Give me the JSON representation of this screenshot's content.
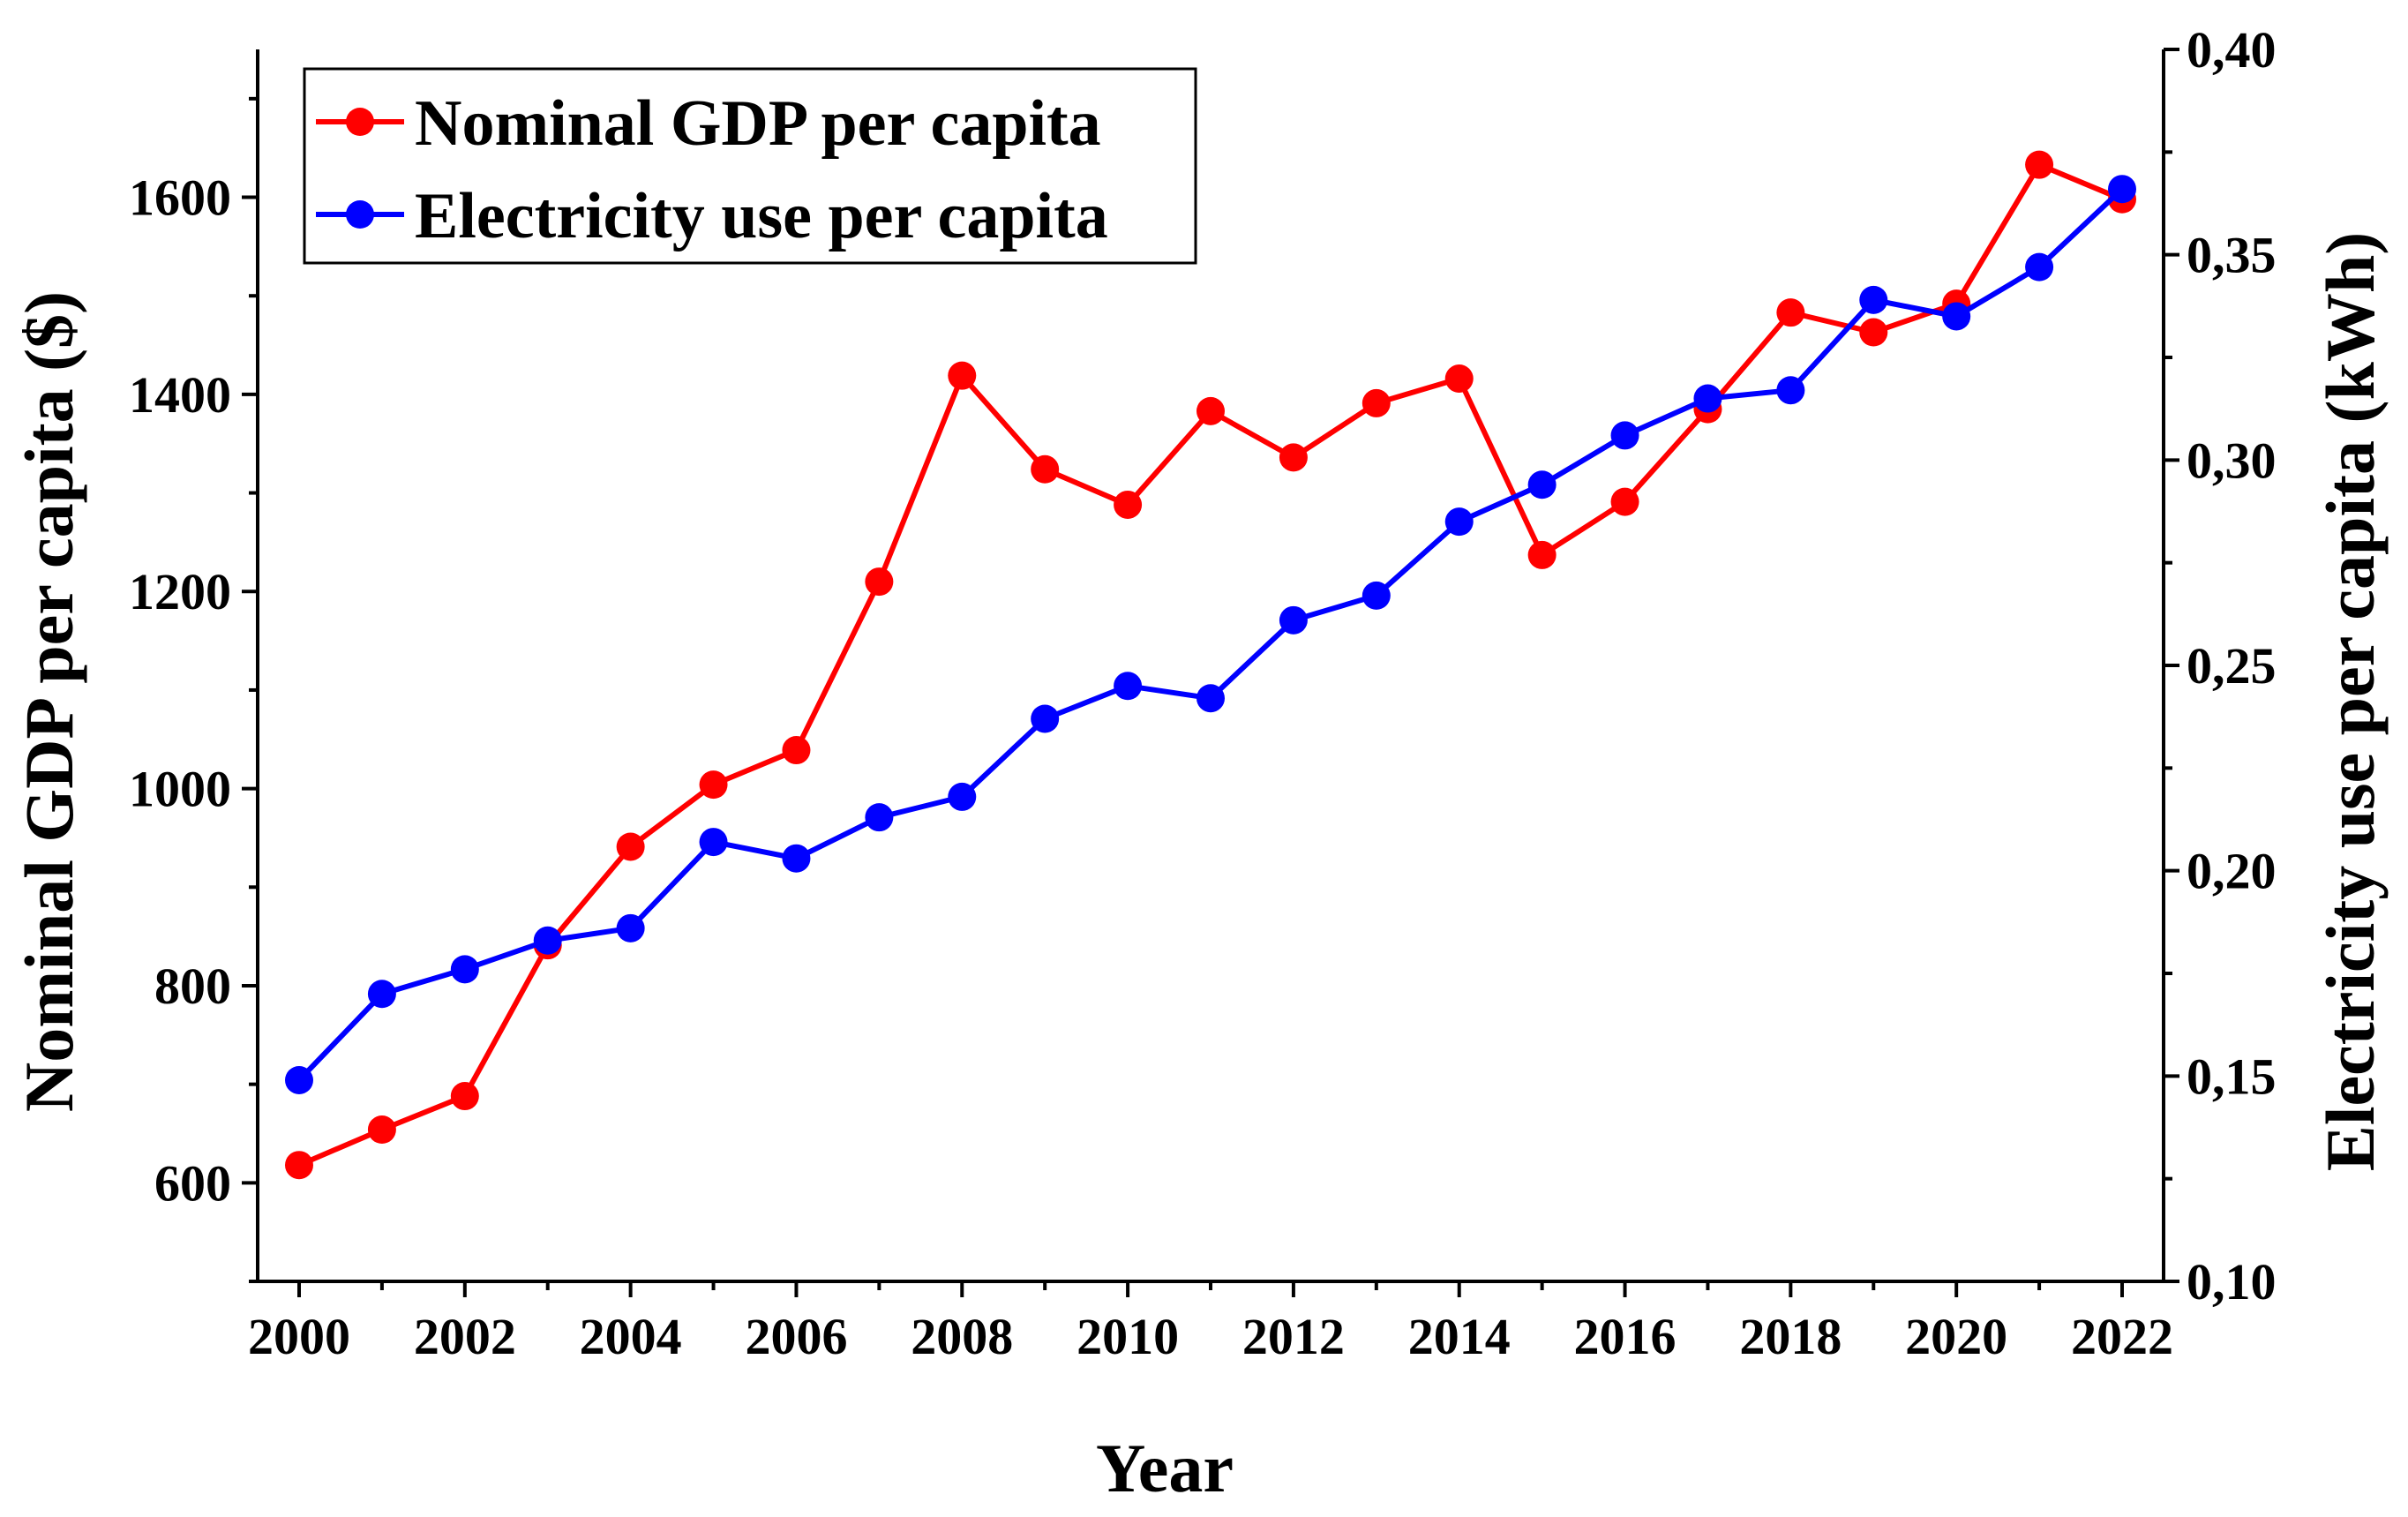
{
  "chart_data": {
    "type": "line",
    "title": "",
    "xlabel": "Year",
    "ylabel": "Nominal GDP per capita ($)",
    "y2label": "Electricity use per capita (kWh)",
    "xlim": [
      2000,
      2022
    ],
    "ylim": [
      500,
      1750
    ],
    "y2lim": [
      0.1,
      0.4
    ],
    "x_ticks": [
      2000,
      2002,
      2004,
      2006,
      2008,
      2010,
      2012,
      2014,
      2016,
      2018,
      2020,
      2022
    ],
    "x_tick_labels": [
      "2000",
      "2002",
      "2004",
      "2006",
      "2008",
      "2010",
      "2012",
      "2014",
      "2016",
      "2018",
      "2020",
      "2022"
    ],
    "y_ticks": [
      600,
      800,
      1000,
      1200,
      1400,
      1600
    ],
    "y_tick_labels": [
      "600",
      "800",
      "1000",
      "1200",
      "1400",
      "1600"
    ],
    "y2_ticks": [
      0.1,
      0.15,
      0.2,
      0.25,
      0.3,
      0.35,
      0.4
    ],
    "y2_tick_labels": [
      "0,10",
      "0,15",
      "0,20",
      "0,25",
      "0,30",
      "0,35",
      "0,40"
    ],
    "legend_position": "top-left",
    "grid": false,
    "x": [
      2000,
      2001,
      2002,
      2003,
      2004,
      2005,
      2006,
      2007,
      2008,
      2009,
      2010,
      2011,
      2012,
      2013,
      2014,
      2015,
      2016,
      2017,
      2018,
      2019,
      2020,
      2021,
      2022
    ],
    "series": [
      {
        "name": "Nominal GDP per capita",
        "axis": "left",
        "color": "#ff0000",
        "values": [
          618,
          654,
          688,
          841,
          941,
          1004,
          1039,
          1210,
          1419,
          1324,
          1288,
          1383,
          1336,
          1391,
          1416,
          1237,
          1291,
          1385,
          1483,
          1463,
          1492,
          1633,
          1598
        ]
      },
      {
        "name": "Electricity use per capita",
        "axis": "right",
        "color": "#0000ff",
        "values": [
          0.149,
          0.17,
          0.176,
          0.183,
          0.186,
          0.207,
          0.203,
          0.213,
          0.218,
          0.237,
          0.245,
          0.242,
          0.261,
          0.267,
          0.285,
          0.294,
          0.306,
          0.315,
          0.317,
          0.339,
          0.335,
          0.347,
          0.366
        ]
      }
    ]
  }
}
